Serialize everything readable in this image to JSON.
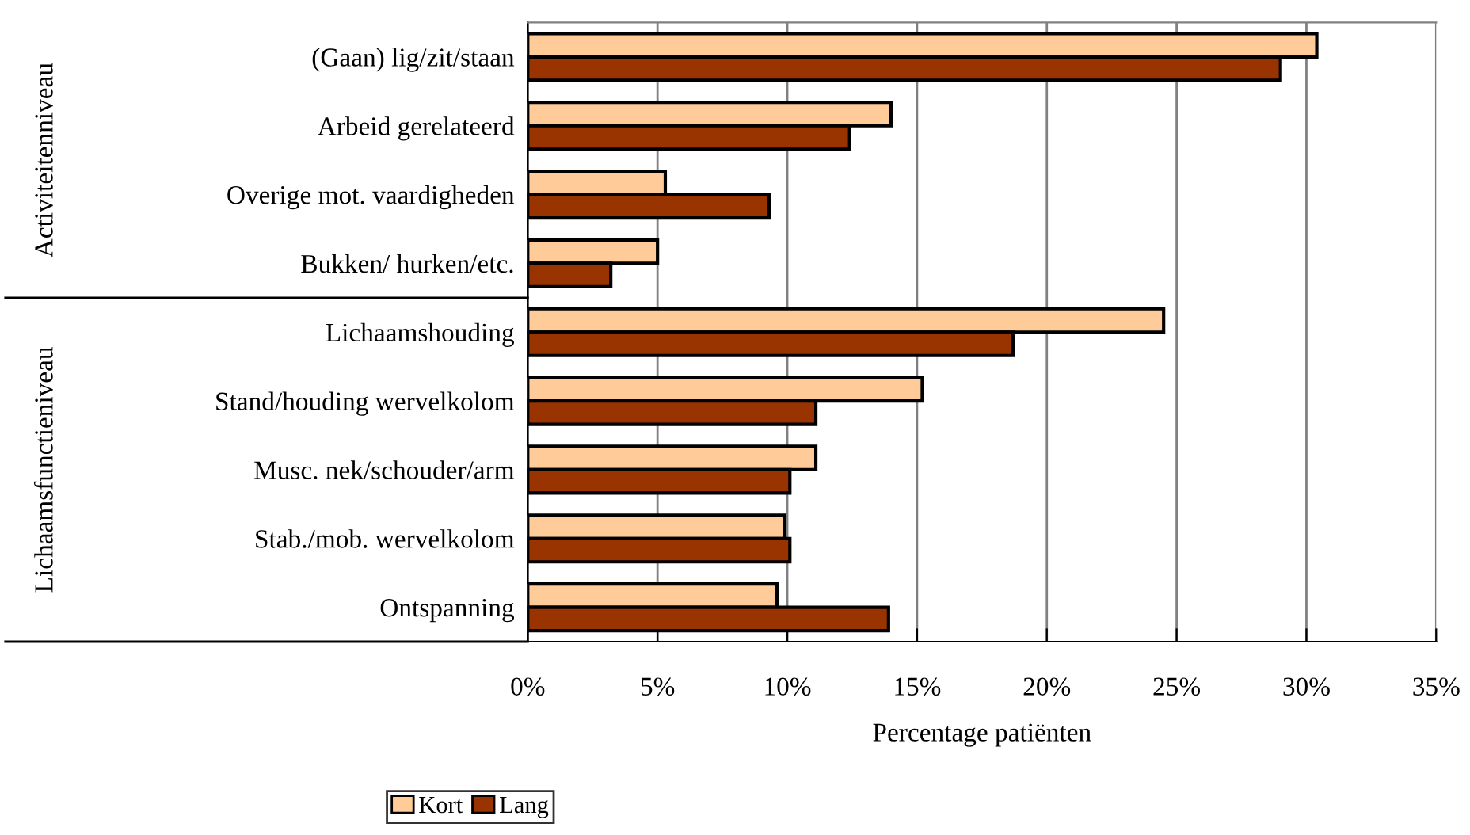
{
  "chart_data": {
    "type": "bar",
    "orientation": "horizontal",
    "xlabel": "Percentage patiënten",
    "categories": [
      "(Gaan) lig/zit/staan",
      "Arbeid gerelateerd",
      "Overige mot. vaardigheden",
      "Bukken/ hurken/etc.",
      "Lichaamshouding",
      "Stand/houding wervelkolom",
      "Musc. nek/schouder/arm",
      "Stab./mob. wervelkolom",
      "Ontspanning"
    ],
    "series": [
      {
        "name": "Kort",
        "color": "#ffcc99",
        "values": [
          30.4,
          14.0,
          5.3,
          5.0,
          24.5,
          15.2,
          11.1,
          9.9,
          9.6
        ]
      },
      {
        "name": "Lang",
        "color": "#993300",
        "values": [
          29.0,
          12.4,
          9.3,
          3.2,
          18.7,
          11.1,
          10.1,
          10.1,
          13.9
        ]
      }
    ],
    "xlim": [
      0,
      35
    ],
    "xticks": [
      {
        "value": 0,
        "label": "0%"
      },
      {
        "value": 5,
        "label": "5%"
      },
      {
        "value": 10,
        "label": "10%"
      },
      {
        "value": 15,
        "label": "15%"
      },
      {
        "value": 20,
        "label": "20%"
      },
      {
        "value": 25,
        "label": "25%"
      },
      {
        "value": 30,
        "label": "30%"
      },
      {
        "value": 35,
        "label": "35%"
      }
    ],
    "grid": "x",
    "legend": "bottom left",
    "annotations": [
      "Activiteitenniveau",
      "Lichaamsfunctieniveau"
    ]
  }
}
